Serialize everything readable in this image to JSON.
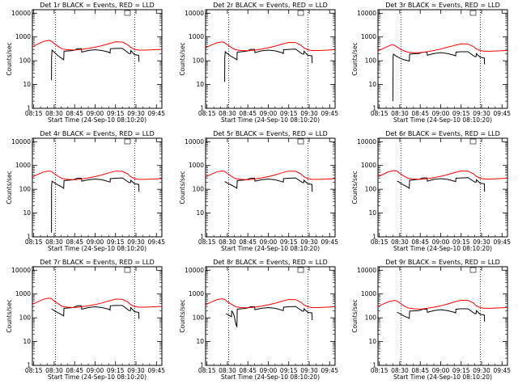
{
  "figure": {
    "ytick_labels": [
      "1",
      "10",
      "100",
      "1000",
      "10000"
    ],
    "yticks": [
      1,
      10,
      100,
      1000,
      10000
    ],
    "xtick_labels": [
      "08:15",
      "08:30",
      "08:45",
      "09:00",
      "09:15",
      "09:30",
      "09:45"
    ],
    "xticks": [
      15,
      30,
      45,
      60,
      75,
      90,
      105
    ],
    "xlim": [
      14,
      109
    ],
    "ylim": [
      1,
      14000
    ],
    "ylabel": "Counts/sec",
    "xlabel": "Start Time (24-Sep-10 08:10:20)",
    "colors": {
      "events": "#000000",
      "lld": "#ff0000",
      "axes": "#000000"
    },
    "vlines": [
      31,
      89
    ]
  },
  "chart_data": [
    {
      "type": "line",
      "title": "Det 1r BLACK = Events, RED = LLD",
      "series": [
        {
          "color": "black",
          "x": [
            28,
            28.1,
            28.4,
            30,
            33,
            36,
            37,
            37.2,
            44,
            47,
            50,
            50.2,
            55,
            60,
            65,
            70,
            71,
            71.2,
            75,
            80,
            85,
            86,
            86.2,
            89,
            92,
            92.2
          ],
          "y": [
            15,
            130,
            280,
            230,
            160,
            120,
            110,
            250,
            270,
            320,
            320,
            230,
            270,
            290,
            270,
            230,
            210,
            320,
            330,
            330,
            200,
            200,
            270,
            180,
            170,
            90
          ]
        },
        {
          "color": "red",
          "x": [
            14,
            18,
            22,
            26,
            28,
            30,
            33,
            36,
            40,
            45,
            50,
            55,
            60,
            65,
            70,
            75,
            80,
            84,
            86,
            89,
            92,
            97,
            103,
            109
          ],
          "y": [
            390,
            500,
            640,
            720,
            660,
            530,
            400,
            310,
            290,
            280,
            300,
            330,
            370,
            430,
            520,
            620,
            610,
            470,
            370,
            300,
            280,
            280,
            290,
            300
          ]
        }
      ]
    },
    {
      "type": "line",
      "title": "Det 2r BLACK = Events, RED = LLD",
      "series": [
        {
          "color": "black",
          "x": [
            28,
            28.1,
            28.4,
            30,
            33,
            36,
            37,
            37.2,
            44,
            47,
            50,
            50.2,
            55,
            60,
            65,
            70,
            71,
            71.2,
            75,
            80,
            85,
            86,
            86.2,
            89,
            92,
            92.2
          ],
          "y": [
            13,
            130,
            240,
            200,
            150,
            120,
            110,
            230,
            250,
            300,
            300,
            220,
            260,
            280,
            260,
            220,
            200,
            290,
            300,
            310,
            190,
            190,
            250,
            170,
            160,
            80
          ]
        },
        {
          "color": "red",
          "x": [
            14,
            18,
            22,
            26,
            28,
            30,
            33,
            36,
            40,
            45,
            50,
            55,
            60,
            65,
            70,
            75,
            80,
            84,
            86,
            89,
            92,
            97,
            103,
            109
          ],
          "y": [
            350,
            450,
            560,
            620,
            580,
            470,
            360,
            290,
            270,
            260,
            280,
            310,
            350,
            410,
            500,
            590,
            580,
            450,
            350,
            290,
            270,
            270,
            280,
            290
          ]
        }
      ]
    },
    {
      "type": "line",
      "title": "Det 3r BLACK = Events, RED = LLD",
      "series": [
        {
          "color": "black",
          "x": [
            25,
            25.1,
            25.4,
            27,
            30,
            33,
            36,
            37,
            37.2,
            44,
            47,
            50,
            50.2,
            55,
            60,
            65,
            70,
            71,
            71.2,
            75,
            80,
            85,
            86,
            86.2,
            89,
            92,
            92.2
          ],
          "y": [
            2,
            150,
            190,
            160,
            130,
            110,
            100,
            95,
            190,
            200,
            230,
            230,
            170,
            200,
            220,
            200,
            170,
            160,
            230,
            240,
            240,
            150,
            150,
            200,
            140,
            130,
            70
          ]
        },
        {
          "color": "red",
          "x": [
            14,
            18,
            22,
            24,
            26,
            28,
            30,
            33,
            36,
            40,
            45,
            50,
            55,
            60,
            65,
            70,
            75,
            80,
            84,
            86,
            89,
            92,
            97,
            103,
            109
          ],
          "y": [
            260,
            330,
            420,
            470,
            450,
            380,
            320,
            260,
            230,
            220,
            220,
            240,
            270,
            310,
            370,
            440,
            510,
            500,
            400,
            320,
            270,
            250,
            250,
            260,
            270
          ]
        }
      ]
    },
    {
      "type": "line",
      "title": "Det 4r BLACK = Events, RED = LLD",
      "series": [
        {
          "color": "black",
          "x": [
            28,
            28.1,
            28.4,
            30,
            33,
            36,
            37,
            37.2,
            44,
            47,
            50,
            50.2,
            55,
            60,
            65,
            70,
            71,
            71.2,
            75,
            80,
            85,
            86,
            86.2,
            89,
            92,
            92.2
          ],
          "y": [
            1.5,
            140,
            220,
            190,
            150,
            120,
            110,
            230,
            250,
            290,
            290,
            220,
            250,
            270,
            250,
            210,
            200,
            280,
            290,
            300,
            190,
            190,
            240,
            170,
            160,
            80
          ]
        },
        {
          "color": "red",
          "x": [
            14,
            18,
            22,
            26,
            28,
            30,
            33,
            36,
            40,
            45,
            50,
            55,
            60,
            65,
            70,
            75,
            80,
            84,
            86,
            89,
            92,
            97,
            103,
            109
          ],
          "y": [
            330,
            420,
            530,
            590,
            560,
            460,
            350,
            280,
            260,
            250,
            270,
            300,
            340,
            400,
            490,
            580,
            570,
            440,
            340,
            280,
            260,
            260,
            270,
            280
          ]
        }
      ]
    },
    {
      "type": "line",
      "title": "Det 5r BLACK = Events, RED = LLD",
      "series": [
        {
          "color": "black",
          "x": [
            28,
            29,
            30,
            33,
            36,
            37,
            37.2,
            44,
            47,
            50,
            50.2,
            55,
            60,
            65,
            70,
            71,
            71.2,
            75,
            80,
            85,
            86,
            86.2,
            89,
            92,
            92.2
          ],
          "y": [
            210,
            200,
            180,
            150,
            120,
            110,
            230,
            250,
            290,
            290,
            220,
            250,
            270,
            250,
            210,
            200,
            280,
            290,
            300,
            190,
            190,
            240,
            170,
            160,
            80
          ]
        },
        {
          "color": "red",
          "x": [
            14,
            18,
            22,
            26,
            28,
            30,
            33,
            36,
            40,
            45,
            50,
            55,
            60,
            65,
            70,
            75,
            80,
            84,
            86,
            89,
            92,
            97,
            103,
            109
          ],
          "y": [
            330,
            420,
            530,
            590,
            560,
            460,
            350,
            280,
            260,
            250,
            270,
            300,
            340,
            400,
            490,
            580,
            570,
            440,
            340,
            280,
            260,
            260,
            270,
            280
          ]
        }
      ]
    },
    {
      "type": "line",
      "title": "Det 6r BLACK = Events, RED = LLD",
      "series": [
        {
          "color": "black",
          "x": [
            28,
            29,
            30,
            33,
            36,
            37,
            37.2,
            44,
            47,
            50,
            50.2,
            55,
            60,
            65,
            70,
            71,
            71.2,
            75,
            80,
            85,
            86,
            86.2,
            89,
            92,
            92.2
          ],
          "y": [
            220,
            210,
            190,
            150,
            120,
            110,
            240,
            260,
            300,
            300,
            220,
            260,
            280,
            260,
            220,
            210,
            290,
            300,
            310,
            200,
            200,
            250,
            180,
            170,
            80
          ]
        },
        {
          "color": "red",
          "x": [
            14,
            18,
            22,
            26,
            28,
            30,
            33,
            36,
            40,
            45,
            50,
            55,
            60,
            65,
            70,
            75,
            80,
            84,
            86,
            89,
            92,
            97,
            103,
            109
          ],
          "y": [
            340,
            430,
            550,
            610,
            580,
            470,
            360,
            290,
            270,
            260,
            280,
            310,
            350,
            410,
            500,
            590,
            580,
            450,
            350,
            290,
            270,
            270,
            280,
            290
          ]
        }
      ]
    },
    {
      "type": "line",
      "title": "Det 7r BLACK = Events, RED = LLD",
      "series": [
        {
          "color": "black",
          "x": [
            28,
            29,
            30,
            33,
            36,
            37,
            37.2,
            44,
            47,
            50,
            50.2,
            55,
            60,
            65,
            70,
            71,
            71.2,
            75,
            80,
            85,
            86,
            86.2,
            89,
            92,
            92.2
          ],
          "y": [
            240,
            220,
            200,
            160,
            130,
            120,
            250,
            270,
            320,
            320,
            230,
            270,
            290,
            270,
            230,
            210,
            320,
            330,
            330,
            200,
            200,
            270,
            180,
            170,
            90
          ]
        },
        {
          "color": "red",
          "x": [
            14,
            18,
            22,
            26,
            28,
            30,
            33,
            36,
            40,
            45,
            50,
            55,
            60,
            65,
            70,
            75,
            80,
            84,
            86,
            89,
            92,
            97,
            103,
            109
          ],
          "y": [
            370,
            470,
            600,
            670,
            630,
            510,
            390,
            300,
            280,
            270,
            290,
            320,
            360,
            420,
            510,
            610,
            600,
            460,
            360,
            300,
            280,
            280,
            290,
            300
          ]
        }
      ]
    },
    {
      "type": "line",
      "title": "Det 8r BLACK = Events, RED = LLD",
      "series": [
        {
          "color": "black",
          "x": [
            29,
            30,
            32,
            33,
            33.2,
            34,
            35,
            36,
            37,
            37.2,
            44,
            47,
            50,
            50.2,
            55,
            60,
            65,
            70,
            71,
            71.2,
            75,
            80,
            85,
            86,
            86.2,
            89,
            92,
            92.2
          ],
          "y": [
            150,
            140,
            120,
            110,
            190,
            170,
            120,
            60,
            40,
            230,
            250,
            290,
            290,
            220,
            250,
            270,
            250,
            210,
            200,
            280,
            290,
            300,
            190,
            190,
            240,
            170,
            160,
            80
          ]
        },
        {
          "color": "red",
          "x": [
            14,
            18,
            22,
            26,
            28,
            30,
            33,
            36,
            40,
            45,
            50,
            55,
            60,
            65,
            70,
            75,
            80,
            84,
            86,
            89,
            92,
            97,
            103,
            109
          ],
          "y": [
            350,
            450,
            570,
            630,
            600,
            480,
            370,
            290,
            270,
            260,
            280,
            310,
            350,
            410,
            500,
            590,
            580,
            450,
            350,
            290,
            270,
            270,
            280,
            290
          ]
        }
      ]
    },
    {
      "type": "line",
      "title": "Det 9r BLACK = Events, RED = LLD",
      "series": [
        {
          "color": "black",
          "x": [
            28,
            29,
            30,
            33,
            36,
            37,
            37.2,
            44,
            47,
            50,
            50.2,
            55,
            60,
            65,
            70,
            71,
            71.2,
            75,
            80,
            85,
            86,
            86.2,
            89,
            92,
            92.2
          ],
          "y": [
            170,
            160,
            150,
            120,
            100,
            95,
            190,
            200,
            230,
            230,
            170,
            200,
            220,
            200,
            170,
            160,
            230,
            240,
            240,
            150,
            150,
            200,
            140,
            130,
            70
          ]
        },
        {
          "color": "red",
          "x": [
            14,
            18,
            22,
            26,
            28,
            30,
            33,
            36,
            40,
            45,
            50,
            55,
            60,
            65,
            70,
            75,
            80,
            84,
            86,
            89,
            92,
            97,
            103,
            109
          ],
          "y": [
            300,
            380,
            480,
            540,
            510,
            420,
            320,
            260,
            240,
            230,
            250,
            280,
            320,
            380,
            460,
            550,
            540,
            420,
            320,
            270,
            250,
            250,
            260,
            270
          ]
        }
      ]
    }
  ]
}
